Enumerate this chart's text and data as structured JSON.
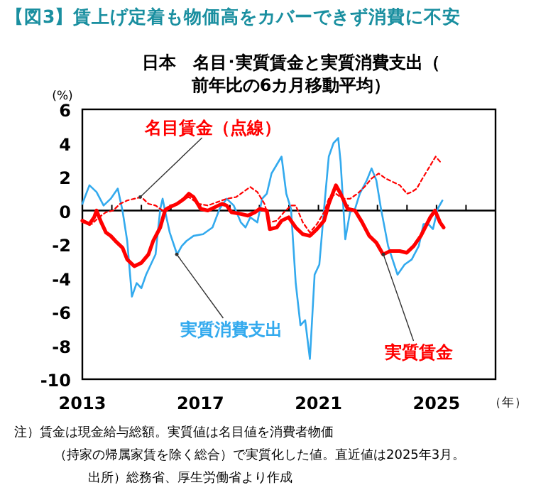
{
  "chart_data": {
    "type": "line",
    "title": "【図3】賃上げ定着も物価高をカバーできず消費に不安",
    "subtitle": "日本　名目･実質賃金と実質消費支出（前年比の6カ月移動平均）",
    "ylabel": "(%)",
    "xlabel": "（年）",
    "xlim": [
      2013,
      2027
    ],
    "xticks": [
      2013,
      {
        "value": 2014,
        "label": null
      },
      {
        "value": 2015,
        "label": null
      },
      {
        "value": 2016,
        "label": null
      },
      2017,
      {
        "value": 2018,
        "label": null
      },
      {
        "value": 2019,
        "label": null
      },
      {
        "value": 2020,
        "label": null
      },
      2021,
      {
        "value": 2022,
        "label": null
      },
      {
        "value": 2023,
        "label": null
      },
      {
        "value": 2024,
        "label": null
      },
      2025,
      {
        "value": 2026,
        "label": null
      }
    ],
    "ylim": [
      -10,
      6
    ],
    "yticks": [
      -10,
      -8,
      -6,
      -4,
      -2,
      0,
      2,
      4,
      6
    ],
    "ref_lines": [
      {
        "axis": "y",
        "value": 0,
        "color": "#000000"
      }
    ],
    "series": [
      {
        "color": "#33aaee",
        "line_style": "solid",
        "x": [
          2013.0,
          2013.24,
          2013.48,
          2013.72,
          2013.96,
          2014.2,
          2014.36,
          2014.52,
          2014.68,
          2014.84,
          2015.0,
          2015.16,
          2015.32,
          2015.48,
          2015.64,
          2015.72,
          2015.8,
          2015.96,
          2016.21,
          2016.37,
          2016.53,
          2016.77,
          2017.09,
          2017.41,
          2017.65,
          2017.89,
          2018.13,
          2018.37,
          2018.53,
          2018.69,
          2018.93,
          2019.09,
          2019.25,
          2019.41,
          2019.75,
          2019.91,
          2020.07,
          2020.23,
          2020.39,
          2020.55,
          2020.71,
          2020.87,
          2021.03,
          2021.19,
          2021.35,
          2021.51,
          2021.67,
          2021.75,
          2021.91,
          2022.07,
          2022.24,
          2022.4,
          2022.64,
          2022.8,
          2022.96,
          2023.12,
          2023.36,
          2023.68,
          2023.92,
          2024.16,
          2024.4,
          2024.56,
          2024.72,
          2024.88,
          2025.04,
          2025.2
        ],
        "values": [
          0.4,
          1.5,
          1.1,
          0.3,
          0.7,
          1.3,
          0.0,
          -1.8,
          -5.1,
          -4.3,
          -4.6,
          -3.8,
          -3.2,
          -2.6,
          0.1,
          0.7,
          0.0,
          -1.3,
          -2.6,
          -2.1,
          -1.8,
          -1.5,
          -1.4,
          -1.0,
          0.1,
          0.7,
          0.3,
          -0.7,
          -1.0,
          -0.4,
          -0.7,
          0.7,
          1.0,
          2.2,
          3.2,
          1.0,
          0.1,
          -4.3,
          -6.8,
          -6.5,
          -8.8,
          -3.8,
          -3.2,
          0.1,
          3.2,
          4.0,
          4.3,
          2.9,
          -1.7,
          -0.1,
          0.1,
          1.0,
          1.8,
          2.5,
          1.8,
          0.1,
          -2.1,
          -3.8,
          -3.2,
          -2.9,
          -2.1,
          -0.8,
          -0.8,
          -1.1,
          0.1,
          0.6
        ]
      },
      {
        "color": "#ff0000",
        "line_style": "solid",
        "x": [
          2013.0,
          2013.24,
          2013.4,
          2013.48,
          2013.64,
          2013.8,
          2013.96,
          2014.12,
          2014.36,
          2014.52,
          2014.76,
          2015.0,
          2015.24,
          2015.4,
          2015.64,
          2015.8,
          2015.96,
          2016.21,
          2016.45,
          2016.61,
          2016.77,
          2017.01,
          2017.25,
          2017.49,
          2017.73,
          2017.89,
          2018.05,
          2018.37,
          2018.61,
          2018.85,
          2019.01,
          2019.25,
          2019.35,
          2019.59,
          2019.75,
          2019.99,
          2020.23,
          2020.47,
          2020.71,
          2020.95,
          2021.19,
          2021.35,
          2021.59,
          2021.75,
          2021.99,
          2022.24,
          2022.48,
          2022.72,
          2022.96,
          2023.19,
          2023.43,
          2023.75,
          2023.99,
          2024.23,
          2024.47,
          2024.79,
          2024.95,
          2025.12,
          2025.24
        ],
        "values": [
          -0.6,
          -0.8,
          -0.4,
          0.0,
          -0.7,
          -1.3,
          -1.5,
          -1.8,
          -2.2,
          -2.9,
          -3.3,
          -3.1,
          -2.6,
          -1.8,
          -1.0,
          0.0,
          0.2,
          0.4,
          0.7,
          1.0,
          0.8,
          0.1,
          0.0,
          0.2,
          0.4,
          0.3,
          -0.1,
          -0.2,
          -0.3,
          -0.1,
          0.1,
          0.0,
          -1.1,
          -1.0,
          -0.6,
          -0.4,
          -1.0,
          -1.4,
          -1.5,
          -1.1,
          -0.6,
          0.4,
          1.5,
          1.0,
          0.1,
          0.0,
          -0.7,
          -1.5,
          -1.9,
          -2.6,
          -2.4,
          -2.4,
          -2.5,
          -2.1,
          -1.5,
          -0.4,
          0.0,
          -0.7,
          -1.0
        ]
      },
      {
        "color": "#ff0000",
        "line_style": "dotted",
        "x": [
          2013.0,
          2013.32,
          2013.56,
          2013.8,
          2014.04,
          2014.28,
          2014.52,
          2014.76,
          2015.0,
          2015.24,
          2015.48,
          2015.72,
          2015.96,
          2016.21,
          2016.45,
          2016.61,
          2016.93,
          2017.25,
          2017.57,
          2017.89,
          2018.21,
          2018.45,
          2018.69,
          2018.93,
          2019.17,
          2019.35,
          2019.59,
          2019.83,
          2020.07,
          2020.23,
          2020.47,
          2020.71,
          2020.95,
          2021.19,
          2021.35,
          2021.59,
          2021.83,
          2022.07,
          2022.32,
          2022.56,
          2022.8,
          2023.04,
          2023.28,
          2023.52,
          2023.76,
          2024.0,
          2024.16,
          2024.33,
          2024.49,
          2024.73,
          2024.97,
          2025.12
        ],
        "values": [
          -0.7,
          -0.8,
          -0.4,
          -0.1,
          0.0,
          0.4,
          0.6,
          0.7,
          0.8,
          0.4,
          0.3,
          0.0,
          0.3,
          0.4,
          0.7,
          0.8,
          0.4,
          0.3,
          0.5,
          0.7,
          0.8,
          1.1,
          1.4,
          1.1,
          0.4,
          -0.7,
          -0.6,
          -0.1,
          0.3,
          0.3,
          -0.7,
          -1.3,
          -0.8,
          -0.1,
          0.7,
          1.0,
          0.7,
          0.7,
          1.0,
          1.4,
          1.9,
          2.2,
          1.9,
          1.7,
          1.5,
          1.0,
          1.1,
          1.3,
          1.8,
          2.5,
          3.2,
          2.9
        ]
      }
    ],
    "annotations": [
      {
        "text": "名目賃金（点線）",
        "x": 2014.96,
        "y": 0.8
      },
      {
        "text": "実質消費支出",
        "x": 2016.2,
        "y": -2.6
      },
      {
        "text": "実質賃金",
        "x": 2023.2,
        "y": -2.6
      },
      "注）賃金は現金給与総額。実質値は名目値を消費者物価",
      "（持家の帰属家賃を除く総合）で実質化した値。直近値は2025年3月。",
      "出所）総務省、厚生労働省より作成"
    ]
  }
}
